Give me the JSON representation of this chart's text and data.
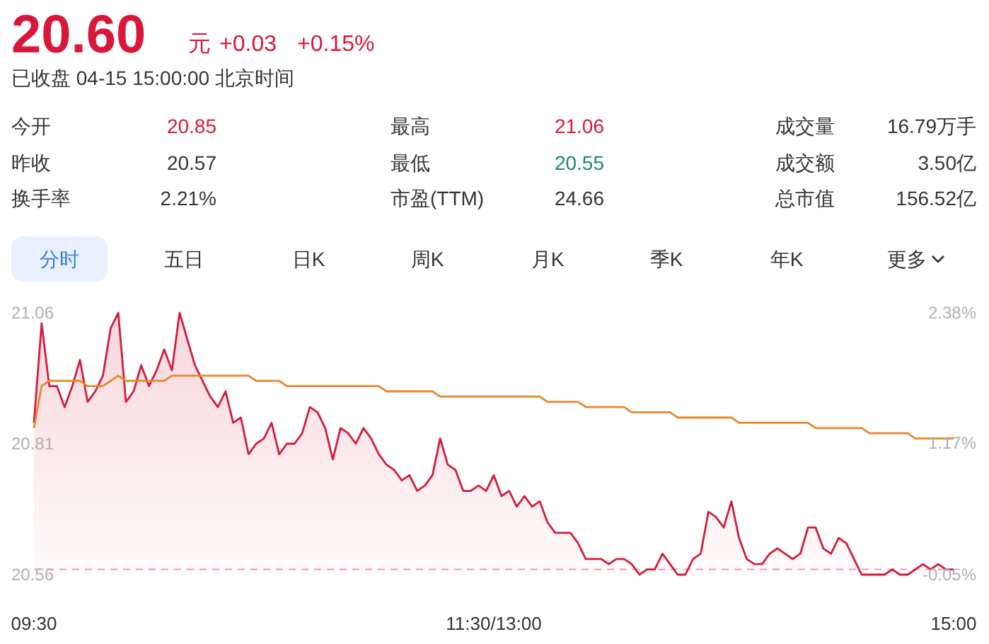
{
  "chart_data": [
    {
      "type": "other",
      "title": "20.60",
      "subtitle": "已收盘 04-15 15:00:00 北京时间",
      "annotations": [
        "元",
        "+0.03",
        "+0.15%",
        "今开",
        "20.85",
        "最高",
        "21.06",
        "成交量",
        "16.79万手",
        "昨收",
        "20.57",
        "最低",
        "20.55",
        "成交额",
        "3.50亿",
        "换手率",
        "2.21%",
        "市盈(TTM)",
        "24.66",
        "总市值",
        "156.52亿",
        "分时",
        "五日",
        "日K",
        "周K",
        "月K",
        "季K",
        "年K",
        "更多"
      ]
    },
    {
      "type": "line",
      "categories": [
        "09:30",
        null,
        null,
        null,
        null,
        null,
        null,
        null,
        null,
        null,
        null,
        null,
        null,
        null,
        null,
        null,
        null,
        null,
        null,
        null,
        null,
        null,
        null,
        null,
        null,
        null,
        null,
        null,
        null,
        null,
        null,
        null,
        null,
        null,
        null,
        null,
        null,
        null,
        null,
        null,
        null,
        null,
        null,
        null,
        null,
        null,
        null,
        null,
        null,
        null,
        null,
        null,
        null,
        null,
        null,
        null,
        null,
        null,
        null,
        null,
        "11:30/13:00",
        null,
        null,
        null,
        null,
        null,
        null,
        null,
        null,
        null,
        null,
        null,
        null,
        null,
        null,
        null,
        null,
        null,
        null,
        null,
        null,
        null,
        null,
        null,
        null,
        null,
        null,
        null,
        null,
        null,
        null,
        null,
        null,
        null,
        null,
        null,
        null,
        null,
        null,
        null,
        null,
        null,
        null,
        null,
        null,
        null,
        null,
        null,
        null,
        null,
        null,
        null,
        null,
        null,
        null,
        null,
        null,
        null,
        null,
        null,
        "15:00"
      ],
      "ylim": [
        20.56,
        21.06
      ],
      "yticks": [
        21.06,
        20.81,
        20.56
      ],
      "y2lim": [
        -0.05,
        2.38
      ],
      "y2ticks": [
        {
          "value": 2.38,
          "label": "2.38%"
        },
        {
          "value": 1.17,
          "label": "1.17%"
        },
        {
          "value": -0.05,
          "label": "-0.05%"
        }
      ],
      "ref_lines": [
        {
          "axis": "y",
          "value": 20.57,
          "color": "#f0a0b4",
          "line_style": "dashed"
        }
      ],
      "series": [
        {
          "type": "area",
          "color": "#d41c3c",
          "values": [
            20.85,
            21.04,
            20.92,
            20.92,
            20.88,
            20.92,
            20.97,
            20.89,
            20.91,
            20.94,
            21.03,
            21.06,
            20.89,
            20.91,
            20.96,
            20.92,
            20.95,
            20.99,
            20.95,
            21.06,
            21.01,
            20.96,
            20.93,
            20.9,
            20.88,
            20.91,
            20.85,
            20.86,
            20.79,
            20.81,
            20.82,
            20.85,
            20.79,
            20.81,
            20.81,
            20.83,
            20.88,
            20.87,
            20.84,
            20.78,
            20.84,
            20.83,
            20.81,
            20.84,
            20.82,
            20.79,
            20.77,
            20.76,
            20.74,
            20.75,
            20.72,
            20.73,
            20.75,
            20.82,
            20.77,
            20.76,
            20.72,
            20.72,
            20.73,
            20.72,
            20.75,
            20.71,
            20.72,
            20.69,
            20.71,
            20.69,
            20.7,
            20.66,
            20.64,
            20.64,
            20.64,
            20.62,
            20.59,
            20.59,
            20.59,
            20.58,
            20.59,
            20.59,
            20.58,
            20.56,
            20.57,
            20.57,
            20.6,
            20.58,
            20.56,
            20.56,
            20.59,
            20.6,
            20.68,
            20.67,
            20.65,
            20.7,
            20.63,
            20.59,
            20.58,
            20.58,
            20.6,
            20.61,
            20.6,
            20.59,
            20.6,
            20.65,
            20.65,
            20.61,
            20.6,
            20.63,
            20.62,
            20.59,
            20.56,
            20.56,
            20.56,
            20.56,
            20.57,
            20.56,
            20.56,
            20.57,
            20.58,
            20.57,
            20.58,
            20.57,
            20.57
          ]
        },
        {
          "type": "line",
          "color": "#e8862b",
          "values": [
            20.84,
            20.92,
            20.93,
            20.93,
            20.93,
            20.93,
            20.93,
            20.92,
            20.92,
            20.92,
            20.93,
            20.94,
            20.93,
            20.93,
            20.93,
            20.93,
            20.93,
            20.93,
            20.94,
            20.94,
            20.94,
            20.94,
            20.94,
            20.94,
            20.94,
            20.94,
            20.94,
            20.94,
            20.94,
            20.93,
            20.93,
            20.93,
            20.93,
            20.92,
            20.92,
            20.92,
            20.92,
            20.92,
            20.92,
            20.92,
            20.92,
            20.92,
            20.92,
            20.92,
            20.92,
            20.92,
            20.91,
            20.91,
            20.91,
            20.91,
            20.91,
            20.91,
            20.91,
            20.9,
            20.9,
            20.9,
            20.9,
            20.9,
            20.9,
            20.9,
            20.9,
            20.9,
            20.9,
            20.9,
            20.9,
            20.9,
            20.9,
            20.89,
            20.89,
            20.89,
            20.89,
            20.89,
            20.88,
            20.88,
            20.88,
            20.88,
            20.88,
            20.88,
            20.87,
            20.87,
            20.87,
            20.87,
            20.87,
            20.87,
            20.86,
            20.86,
            20.86,
            20.86,
            20.86,
            20.86,
            20.86,
            20.86,
            20.85,
            20.85,
            20.85,
            20.85,
            20.85,
            20.85,
            20.85,
            20.85,
            20.85,
            20.85,
            20.84,
            20.84,
            20.84,
            20.84,
            20.84,
            20.84,
            20.84,
            20.83,
            20.83,
            20.83,
            20.83,
            20.83,
            20.83,
            20.82,
            20.82,
            20.82,
            20.82,
            20.82,
            20.82
          ]
        }
      ]
    }
  ]
}
